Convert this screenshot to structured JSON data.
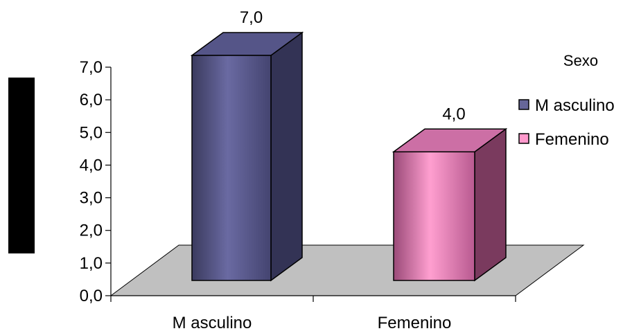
{
  "chart_data": {
    "type": "bar",
    "categories": [
      "M asculino",
      "Femenino"
    ],
    "values": [
      7.0,
      4.0
    ],
    "value_labels": [
      "7,0",
      "4,0"
    ],
    "title": "",
    "xlabel": "",
    "ylabel": "",
    "ylim": [
      0,
      7
    ],
    "yticks": [
      "0,0",
      "1,0",
      "2,0",
      "3,0",
      "4,0",
      "5,0",
      "6,0",
      "7,0"
    ],
    "grid": false,
    "three_d": true,
    "legend": {
      "title": "Sexo",
      "position": "right",
      "entries": [
        {
          "label": "M asculino",
          "color": "#666699"
        },
        {
          "label": "Femenino",
          "color": "#ff99cc"
        }
      ]
    },
    "colors": {
      "bar_masculino": "#666699",
      "bar_femenino": "#ff99cc",
      "floor": "#c0c0c0",
      "redaction_block": "#000000"
    }
  }
}
